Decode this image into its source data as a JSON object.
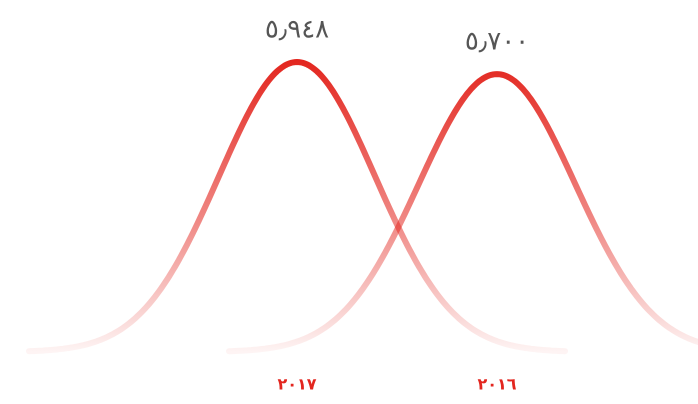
{
  "chart_data": {
    "type": "bell",
    "categories": [
      "٢٠١٧",
      "٢٠١٦"
    ],
    "values": [
      5.948,
      5.7
    ],
    "value_labels": [
      "٥٫٩٤٨",
      "٥٫٧٠٠"
    ],
    "color": "#e3261f"
  }
}
